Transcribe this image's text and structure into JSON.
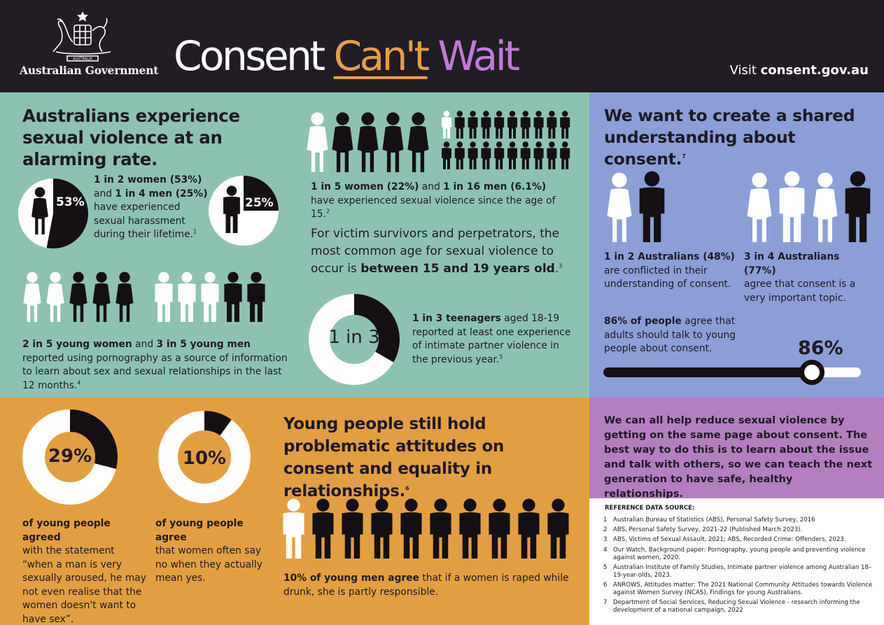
{
  "header": {
    "crest_text": "AUSTRALIA",
    "government": "Australian Government",
    "title_part1": "Consent ",
    "title_part2": "Can't",
    "title_part3": " Wait",
    "visit_prefix": "Visit ",
    "visit_url": "consent.gov.au"
  },
  "colors": {
    "header_bg": "#221c25",
    "green_panel": "#8dc2b3",
    "blue_panel": "#8b9fd6",
    "orange_panel": "#e29f42",
    "purple_panel": "#b37fbf",
    "accent_orange": "#e59f40",
    "accent_purple": "#c07bd6",
    "dark": "#141014"
  },
  "green": {
    "heading": "Australians experience sexual violence at an alarming rate.",
    "harassment": {
      "women_percent": 53,
      "women_label": "53%",
      "men_percent": 25,
      "men_label": "25%",
      "text_bold1": "1 in 2 women (53%)",
      "text_mid1": " and ",
      "text_bold2": "1 in 4 men (25%)",
      "text_rest": " have experienced sexual harassment during their lifetime.",
      "ref": "1"
    },
    "pornography": {
      "text_bold1": "2 in 5 young women",
      "text_mid": " and ",
      "text_bold2": "3 in 5 young men",
      "text_rest": " reported using pornography as a source of information to learn about sex and sexual relationships in the last 12 months.",
      "ref": "4"
    },
    "since15": {
      "text_bold1": "1 in 5 women (22%)",
      "text_mid": " and ",
      "text_bold2": "1 in 16 men (6.1%)",
      "text_rest": " have experienced sexual violence since the age of 15.",
      "ref": "2"
    },
    "common_age": {
      "text": "For victim survivors and perpetrators, the most common age for sexual violence to occur is ",
      "bold": "between 15 and 19 years old",
      "end": ".",
      "ref": "3"
    },
    "teen": {
      "donut_label": "1 in 3",
      "fraction": 0.3333,
      "bold": "1 in 3 teenagers",
      "rest": " aged 18-19 reported at least one experience of intimate partner violence in the previous year.",
      "ref": "5"
    }
  },
  "blue": {
    "heading": "We want to create a shared understanding about consent.",
    "heading_ref": "7",
    "conflicted_bold": "1 in 2 Australians (48%)",
    "conflicted_rest": "are conflicted in their understanding of consent.",
    "important_bold": "3 in 4 Australians (77%)",
    "important_rest": "agree that consent is a very important topic.",
    "talk_bold": "86% of people",
    "talk_rest": " agree that adults should talk to young people about consent.",
    "slider_label": "86%",
    "slider_value": 0.86
  },
  "orange": {
    "donut1_label": "29%",
    "donut1_value": 29,
    "donut1_bold": "of young people agreed",
    "donut1_rest": "with the statement “when a man is very sexually aroused, he may not even realise that the women doesn't want to have sex”.",
    "donut2_label": "10%",
    "donut2_value": 10,
    "donut2_bold": "of young people agree",
    "donut2_rest": "that women often say no when they actually mean yes.",
    "heading": "Young people still hold problematic attitudes on consent and equality in relationships.",
    "heading_ref": "6",
    "men_bold": "10% of young men agree",
    "men_rest": " that if a women is raped while drunk, she is partly responsible."
  },
  "purple": {
    "text": "We can all help reduce sexual violence by getting on the same page about consent. The best way to do this is to learn about the issue and talk with others, so we can teach the next generation to have safe, healthy relationships."
  },
  "references": {
    "title": "REFERENCE DATA SOURCE:",
    "items": [
      {
        "n": "1",
        "text": "Australian Bureau of Statistics (ABS), Personal Safety Survey, 2016"
      },
      {
        "n": "2",
        "text": "ABS, Personal Safety Survey, 2021-22 (Published March 2023)."
      },
      {
        "n": "3",
        "text": "ABS, Victims of Sexual Assault, 2021; ABS, Recorded Crime: Offenders, 2023."
      },
      {
        "n": "4",
        "text": "Our Watch, Background paper: Pornography, young people and preventing violence against women, 2020."
      },
      {
        "n": "5",
        "text": "Australian Institute of Family Studies, Intimate partner violence among Australian 18–19-year-olds, 2023."
      },
      {
        "n": "6",
        "text": "ANROWS, Attitudes matter: The 2021 National Community Attitudes towards Violence against Women Survey (NCAS), Findings for young Australians."
      },
      {
        "n": "7",
        "text": "Department of Social Services, Reducing Sexual Violence - research informing the development of a national campaign, 2022"
      }
    ]
  }
}
